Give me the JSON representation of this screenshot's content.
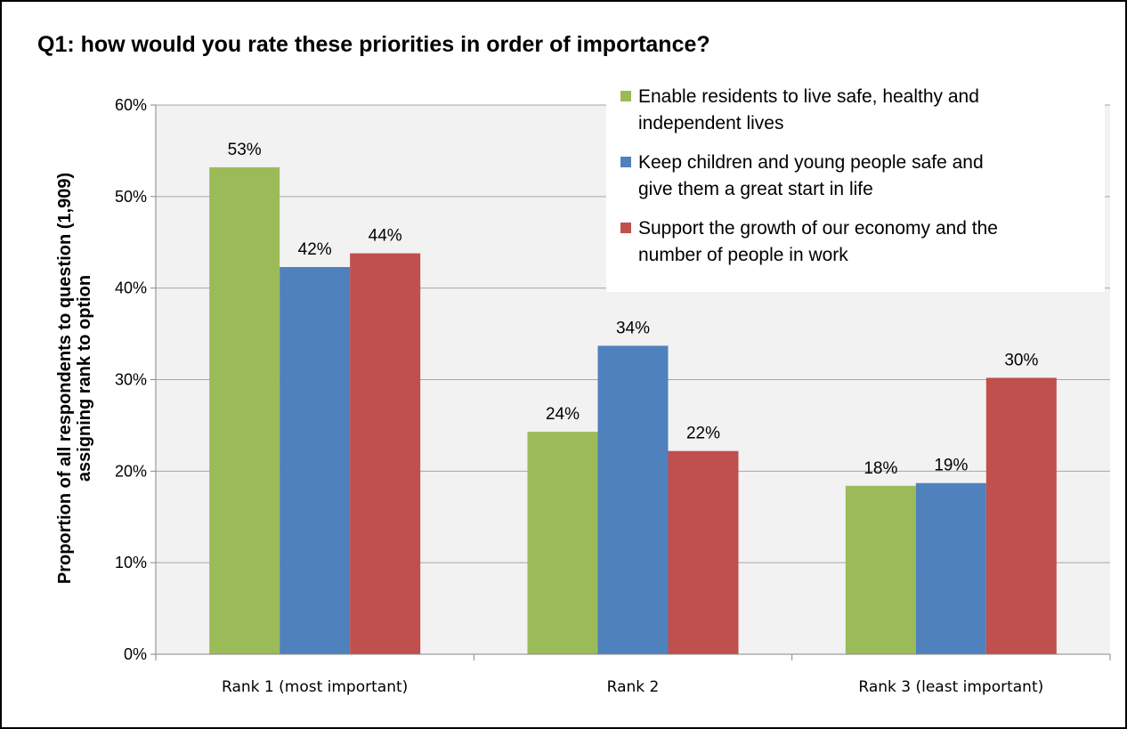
{
  "chart_data": {
    "type": "bar",
    "title": "Q1: how would you rate these priorities in order of importance?",
    "ylabel": [
      "Proportion of all respondents to question (1,909)",
      "assigning rank to option"
    ],
    "xlabel": "",
    "categories": [
      "Rank 1 (most important)",
      "Rank 2",
      "Rank 3 (least important)"
    ],
    "y_ticks": [
      "0%",
      "10%",
      "20%",
      "30%",
      "40%",
      "50%",
      "60%"
    ],
    "ylim": [
      0,
      60
    ],
    "grid": true,
    "legend_position": "top-right",
    "series": [
      {
        "name": "Enable residents to live safe, healthy and independent lives",
        "legend_lines": [
          "Enable residents to live safe, healthy and",
          "independent lives"
        ],
        "color": "#9bbb59",
        "values": [
          53.2,
          24.3,
          18.4
        ],
        "labels": [
          "53%",
          "24%",
          "18%"
        ]
      },
      {
        "name": "Keep children and young people safe and give them a great start in life",
        "legend_lines": [
          "Keep children and young people safe and",
          "give them a great start in life"
        ],
        "color": "#4f81bd",
        "values": [
          42.3,
          33.7,
          18.7
        ],
        "labels": [
          "42%",
          "34%",
          "19%"
        ]
      },
      {
        "name": "Support the growth of our economy and the number of people in work",
        "legend_lines": [
          "Support the growth of our economy and the",
          "number of people in work"
        ],
        "color": "#c0504d",
        "values": [
          43.8,
          22.2,
          30.2
        ],
        "labels": [
          "44%",
          "22%",
          "30%"
        ]
      }
    ]
  }
}
